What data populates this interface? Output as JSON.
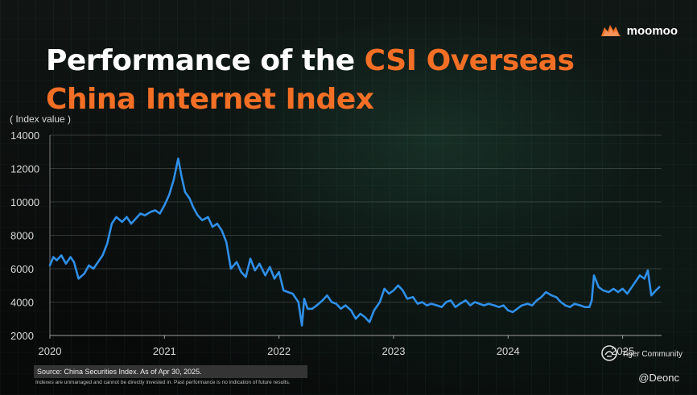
{
  "brand": {
    "name": "moomoo",
    "logo_icon": "bull-logo-icon",
    "accent": "#f36f25"
  },
  "title": {
    "white_part": "Performance of the",
    "accent_part_1": "CSI Overseas",
    "accent_part_2": "China Internet Index"
  },
  "footer": {
    "source": "Source: China Securities Index. As of Apr 30, 2025.",
    "disclaimer": "Indexes are unmanaged and cannot be directly invested in. Past performance is no indication of future results.",
    "community": "Tiger Community",
    "handle": "@Deonc"
  },
  "chart_data": {
    "type": "line",
    "ylabel": "( Index value )",
    "xlabel": "",
    "ylim": [
      2000,
      14000
    ],
    "yticks": [
      2000,
      4000,
      6000,
      8000,
      10000,
      12000,
      14000
    ],
    "xlim": [
      2020.0,
      2025.34
    ],
    "xticks": [
      {
        "label": "2020",
        "value": 2020.0
      },
      {
        "label": "2021",
        "value": 2021.0
      },
      {
        "label": "2022",
        "value": 2022.0
      },
      {
        "label": "2023",
        "value": 2023.0
      },
      {
        "label": "2024",
        "value": 2024.0
      },
      {
        "label": "2025",
        "value": 2025.0
      }
    ],
    "grid": true,
    "line_color": "#2f8fe8",
    "series": [
      {
        "name": "CSI Overseas China Internet Index",
        "x": [
          2020.0,
          2020.03,
          2020.06,
          2020.1,
          2020.14,
          2020.18,
          2020.21,
          2020.25,
          2020.3,
          2020.34,
          2020.38,
          2020.42,
          2020.46,
          2020.5,
          2020.54,
          2020.58,
          2020.63,
          2020.67,
          2020.71,
          2020.75,
          2020.79,
          2020.83,
          2020.88,
          2020.92,
          2020.96,
          2021.0,
          2021.04,
          2021.08,
          2021.12,
          2021.15,
          2021.18,
          2021.22,
          2021.25,
          2021.29,
          2021.33,
          2021.38,
          2021.42,
          2021.46,
          2021.5,
          2021.54,
          2021.58,
          2021.63,
          2021.67,
          2021.71,
          2021.75,
          2021.79,
          2021.83,
          2021.88,
          2021.92,
          2021.96,
          2022.0,
          2022.04,
          2022.08,
          2022.12,
          2022.17,
          2022.2,
          2022.22,
          2022.25,
          2022.29,
          2022.33,
          2022.38,
          2022.42,
          2022.46,
          2022.5,
          2022.54,
          2022.58,
          2022.63,
          2022.67,
          2022.71,
          2022.75,
          2022.79,
          2022.83,
          2022.88,
          2022.92,
          2022.96,
          2023.0,
          2023.04,
          2023.08,
          2023.12,
          2023.17,
          2023.21,
          2023.25,
          2023.29,
          2023.33,
          2023.38,
          2023.42,
          2023.46,
          2023.5,
          2023.54,
          2023.58,
          2023.63,
          2023.67,
          2023.71,
          2023.75,
          2023.79,
          2023.83,
          2023.88,
          2023.92,
          2023.96,
          2024.0,
          2024.04,
          2024.08,
          2024.12,
          2024.17,
          2024.21,
          2024.25,
          2024.29,
          2024.33,
          2024.38,
          2024.42,
          2024.46,
          2024.5,
          2024.54,
          2024.58,
          2024.63,
          2024.67,
          2024.71,
          2024.73,
          2024.75,
          2024.79,
          2024.83,
          2024.88,
          2024.92,
          2024.96,
          2025.0,
          2025.04,
          2025.08,
          2025.12,
          2025.15,
          2025.19,
          2025.22,
          2025.25,
          2025.29,
          2025.32
        ],
        "y": [
          6200,
          6700,
          6500,
          6800,
          6300,
          6700,
          6400,
          5400,
          5700,
          6200,
          6000,
          6400,
          6800,
          7500,
          8700,
          9100,
          8800,
          9100,
          8700,
          9000,
          9300,
          9200,
          9400,
          9500,
          9300,
          9800,
          10400,
          11300,
          12600,
          11500,
          10600,
          10200,
          9700,
          9200,
          8900,
          9100,
          8500,
          8700,
          8300,
          7600,
          6000,
          6400,
          5800,
          5500,
          6600,
          5900,
          6300,
          5600,
          6100,
          5400,
          5800,
          4700,
          4600,
          4500,
          4000,
          2600,
          4200,
          3600,
          3600,
          3800,
          4100,
          4400,
          4000,
          3900,
          3600,
          3800,
          3500,
          3000,
          3300,
          3100,
          2800,
          3500,
          4000,
          4800,
          4500,
          4700,
          5000,
          4700,
          4200,
          4300,
          3900,
          4000,
          3800,
          3900,
          3800,
          3700,
          4000,
          4100,
          3700,
          3900,
          4100,
          3800,
          4000,
          3900,
          3800,
          3900,
          3800,
          3700,
          3800,
          3500,
          3400,
          3600,
          3800,
          3900,
          3800,
          4100,
          4300,
          4600,
          4400,
          4300,
          4000,
          3800,
          3700,
          3900,
          3800,
          3700,
          3700,
          4100,
          5600,
          4900,
          4700,
          4600,
          4800,
          4600,
          4800,
          4500,
          4900,
          5300,
          5600,
          5400,
          5900,
          4400,
          4700,
          4900
        ]
      }
    ]
  }
}
